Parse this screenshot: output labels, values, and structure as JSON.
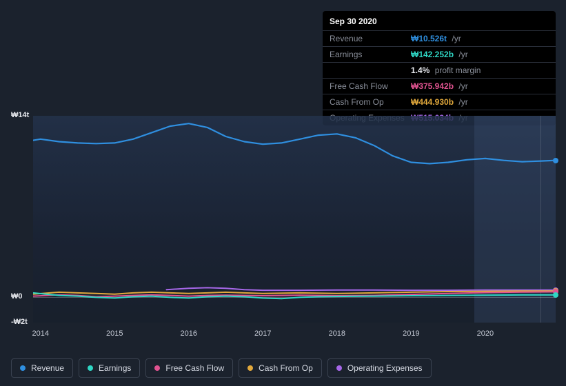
{
  "tooltip": {
    "date": "Sep 30 2020",
    "rows": [
      {
        "label": "Revenue",
        "value": "₩10.526t",
        "unit": "/yr",
        "color": "#2f8fe0"
      },
      {
        "label": "Earnings",
        "value": "₩142.252b",
        "unit": "/yr",
        "color": "#2fd6c4"
      },
      {
        "label": "",
        "value": "1.4%",
        "unit": "profit margin",
        "color": "#e5e7ec"
      },
      {
        "label": "Free Cash Flow",
        "value": "₩375.942b",
        "unit": "/yr",
        "color": "#e05390"
      },
      {
        "label": "Cash From Op",
        "value": "₩444.930b",
        "unit": "/yr",
        "color": "#e2a93c"
      },
      {
        "label": "Operating Expenses",
        "value": "₩515.034b",
        "unit": "/yr",
        "color": "#a667e8"
      }
    ]
  },
  "chart": {
    "type": "line",
    "background_gradient": [
      "#233452",
      "#19243a"
    ],
    "y_min_t": -2,
    "y_max_t": 14,
    "y_ticks": [
      {
        "v": 14,
        "label": "₩14t"
      },
      {
        "v": 0,
        "label": "₩0"
      },
      {
        "v": -2,
        "label": "-₩2t"
      }
    ],
    "x_years": [
      2014,
      2015,
      2016,
      2017,
      2018,
      2019,
      2020
    ],
    "x_domain_start": 2013.9,
    "x_domain_end": 2020.95,
    "marker_year": 2020.75,
    "future_start_year": 2019.85,
    "series": [
      {
        "name": "Revenue",
        "color": "#2f8fe0",
        "width": 2.2,
        "points": [
          [
            2013.9,
            12.1
          ],
          [
            2014.0,
            12.2
          ],
          [
            2014.25,
            12.0
          ],
          [
            2014.5,
            11.9
          ],
          [
            2014.75,
            11.85
          ],
          [
            2015.0,
            11.9
          ],
          [
            2015.25,
            12.2
          ],
          [
            2015.5,
            12.7
          ],
          [
            2015.75,
            13.2
          ],
          [
            2016.0,
            13.4
          ],
          [
            2016.25,
            13.1
          ],
          [
            2016.5,
            12.4
          ],
          [
            2016.75,
            12.0
          ],
          [
            2017.0,
            11.8
          ],
          [
            2017.25,
            11.9
          ],
          [
            2017.5,
            12.2
          ],
          [
            2017.75,
            12.5
          ],
          [
            2018.0,
            12.6
          ],
          [
            2018.25,
            12.3
          ],
          [
            2018.5,
            11.7
          ],
          [
            2018.75,
            10.9
          ],
          [
            2019.0,
            10.4
          ],
          [
            2019.25,
            10.3
          ],
          [
            2019.5,
            10.4
          ],
          [
            2019.75,
            10.6
          ],
          [
            2020.0,
            10.7
          ],
          [
            2020.25,
            10.55
          ],
          [
            2020.5,
            10.45
          ],
          [
            2020.75,
            10.5
          ],
          [
            2020.95,
            10.55
          ]
        ]
      },
      {
        "name": "Operating Expenses",
        "color": "#a667e8",
        "width": 2,
        "points": [
          [
            2015.7,
            0.55
          ],
          [
            2016.0,
            0.65
          ],
          [
            2016.25,
            0.7
          ],
          [
            2016.5,
            0.65
          ],
          [
            2016.75,
            0.55
          ],
          [
            2017.0,
            0.5
          ],
          [
            2017.5,
            0.5
          ],
          [
            2018.0,
            0.52
          ],
          [
            2018.5,
            0.52
          ],
          [
            2019.0,
            0.5
          ],
          [
            2019.5,
            0.5
          ],
          [
            2020.0,
            0.52
          ],
          [
            2020.5,
            0.52
          ],
          [
            2020.95,
            0.52
          ]
        ]
      },
      {
        "name": "Cash From Op",
        "color": "#e2a93c",
        "width": 2,
        "points": [
          [
            2013.9,
            0.2
          ],
          [
            2014.25,
            0.35
          ],
          [
            2014.5,
            0.3
          ],
          [
            2014.75,
            0.25
          ],
          [
            2015.0,
            0.2
          ],
          [
            2015.25,
            0.3
          ],
          [
            2015.5,
            0.35
          ],
          [
            2015.75,
            0.3
          ],
          [
            2016.0,
            0.25
          ],
          [
            2016.25,
            0.3
          ],
          [
            2016.5,
            0.35
          ],
          [
            2016.75,
            0.3
          ],
          [
            2017.0,
            0.25
          ],
          [
            2017.5,
            0.3
          ],
          [
            2018.0,
            0.25
          ],
          [
            2018.5,
            0.3
          ],
          [
            2019.0,
            0.35
          ],
          [
            2019.5,
            0.4
          ],
          [
            2020.0,
            0.42
          ],
          [
            2020.5,
            0.44
          ],
          [
            2020.95,
            0.44
          ]
        ]
      },
      {
        "name": "Free Cash Flow",
        "color": "#e05390",
        "width": 2,
        "points": [
          [
            2013.9,
            0.05
          ],
          [
            2014.25,
            0.15
          ],
          [
            2014.5,
            0.1
          ],
          [
            2014.75,
            0.0
          ],
          [
            2015.0,
            0.05
          ],
          [
            2015.25,
            0.1
          ],
          [
            2015.5,
            0.15
          ],
          [
            2015.75,
            0.1
          ],
          [
            2016.0,
            0.05
          ],
          [
            2016.25,
            0.1
          ],
          [
            2016.5,
            0.12
          ],
          [
            2016.75,
            0.1
          ],
          [
            2017.0,
            0.08
          ],
          [
            2017.5,
            0.12
          ],
          [
            2018.0,
            0.08
          ],
          [
            2018.5,
            0.1
          ],
          [
            2019.0,
            0.18
          ],
          [
            2019.5,
            0.25
          ],
          [
            2020.0,
            0.32
          ],
          [
            2020.5,
            0.36
          ],
          [
            2020.95,
            0.38
          ]
        ]
      },
      {
        "name": "Earnings",
        "color": "#2fd6c4",
        "width": 2,
        "points": [
          [
            2013.9,
            0.3
          ],
          [
            2014.25,
            0.1
          ],
          [
            2014.5,
            0.05
          ],
          [
            2014.75,
            -0.05
          ],
          [
            2015.0,
            -0.1
          ],
          [
            2015.25,
            0.0
          ],
          [
            2015.5,
            0.05
          ],
          [
            2015.75,
            -0.05
          ],
          [
            2016.0,
            -0.1
          ],
          [
            2016.25,
            0.0
          ],
          [
            2016.5,
            0.05
          ],
          [
            2016.75,
            0.0
          ],
          [
            2017.0,
            -0.1
          ],
          [
            2017.25,
            -0.15
          ],
          [
            2017.5,
            -0.05
          ],
          [
            2017.75,
            0.0
          ],
          [
            2018.0,
            0.02
          ],
          [
            2018.5,
            0.05
          ],
          [
            2019.0,
            0.08
          ],
          [
            2019.5,
            0.1
          ],
          [
            2020.0,
            0.12
          ],
          [
            2020.5,
            0.14
          ],
          [
            2020.95,
            0.14
          ]
        ]
      }
    ],
    "legend": [
      {
        "label": "Revenue",
        "color": "#2f8fe0"
      },
      {
        "label": "Earnings",
        "color": "#2fd6c4"
      },
      {
        "label": "Free Cash Flow",
        "color": "#e05390"
      },
      {
        "label": "Cash From Op",
        "color": "#e2a93c"
      },
      {
        "label": "Operating Expenses",
        "color": "#a667e8"
      }
    ]
  }
}
